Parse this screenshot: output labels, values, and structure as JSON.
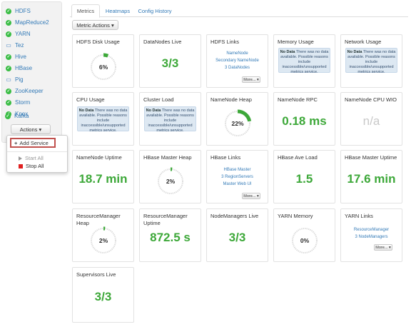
{
  "sidebar": {
    "services": [
      {
        "name": "HDFS",
        "status": "ok"
      },
      {
        "name": "MapReduce2",
        "status": "ok"
      },
      {
        "name": "YARN",
        "status": "ok"
      },
      {
        "name": "Tez",
        "status": "monitor"
      },
      {
        "name": "Hive",
        "status": "ok"
      },
      {
        "name": "HBase",
        "status": "ok"
      },
      {
        "name": "Pig",
        "status": "monitor"
      },
      {
        "name": "ZooKeeper",
        "status": "ok"
      },
      {
        "name": "Storm",
        "status": "ok"
      },
      {
        "name": "Knox",
        "status": "ok"
      },
      {
        "name": "Kafka",
        "status": "ok"
      }
    ],
    "actions_label": "Actions ▾",
    "dropdown": {
      "add_service": "Add Service",
      "start_all": "Start All",
      "stop_all": "Stop All"
    }
  },
  "tabs": [
    {
      "label": "Metrics",
      "active": true
    },
    {
      "label": "Heatmaps",
      "active": false
    },
    {
      "label": "Config History",
      "active": false
    }
  ],
  "metric_actions_label": "Metric Actions ▾",
  "nodata_text": {
    "bold": "No Data",
    "rest": "There was no data available. Possible reasons include inaccessible/unsupported metrics service."
  },
  "more_label": "More... ▾",
  "widgets": {
    "hdfs_disk_usage": {
      "title": "HDFS Disk Usage",
      "value": "6%",
      "percent": 6
    },
    "datanodes_live": {
      "title": "DataNodes Live",
      "value": "3/3"
    },
    "hdfs_links": {
      "title": "HDFS Links",
      "links": [
        "NameNode",
        "Secondary NameNode",
        "3 DataNodes"
      ]
    },
    "memory_usage": {
      "title": "Memory Usage"
    },
    "network_usage": {
      "title": "Network Usage"
    },
    "cpu_usage": {
      "title": "CPU Usage"
    },
    "cluster_load": {
      "title": "Cluster Load"
    },
    "namenode_heap": {
      "title": "NameNode Heap",
      "value": "22%",
      "percent": 22
    },
    "namenode_rpc": {
      "title": "NameNode RPC",
      "value": "0.18 ms"
    },
    "namenode_cpu_wio": {
      "title": "NameNode CPU WIO",
      "value": "n/a"
    },
    "namenode_uptime": {
      "title": "NameNode Uptime",
      "value": "18.7 min"
    },
    "hbase_master_heap": {
      "title": "HBase Master Heap",
      "value": "2%",
      "percent": 2
    },
    "hbase_links": {
      "title": "HBase Links",
      "links": [
        "HBase Master",
        "3 RegionServers",
        "Master Web UI"
      ]
    },
    "hbase_ave_load": {
      "title": "HBase Ave Load",
      "value": "1.5"
    },
    "hbase_master_uptime": {
      "title": "HBase Master Uptime",
      "value": "17.6 min"
    },
    "rm_heap": {
      "title": "ResourceManager Heap",
      "value": "2%",
      "percent": 2
    },
    "rm_uptime": {
      "title": "ResourceManager Uptime",
      "value": "872.5 s"
    },
    "nodemanagers_live": {
      "title": "NodeManagers Live",
      "value": "3/3"
    },
    "yarn_memory": {
      "title": "YARN Memory",
      "value": "0%",
      "percent": 0
    },
    "yarn_links": {
      "title": "YARN Links",
      "links": [
        "ResourceManager",
        "3 NodeManagers"
      ]
    },
    "supervisors_live": {
      "title": "Supervisors Live",
      "value": "3/3"
    }
  },
  "colors": {
    "ok": "#3bbd46",
    "value": "#3da839",
    "link": "#337ab7",
    "gauge_fill": "#3da839",
    "gauge_track": "#dddddd"
  }
}
